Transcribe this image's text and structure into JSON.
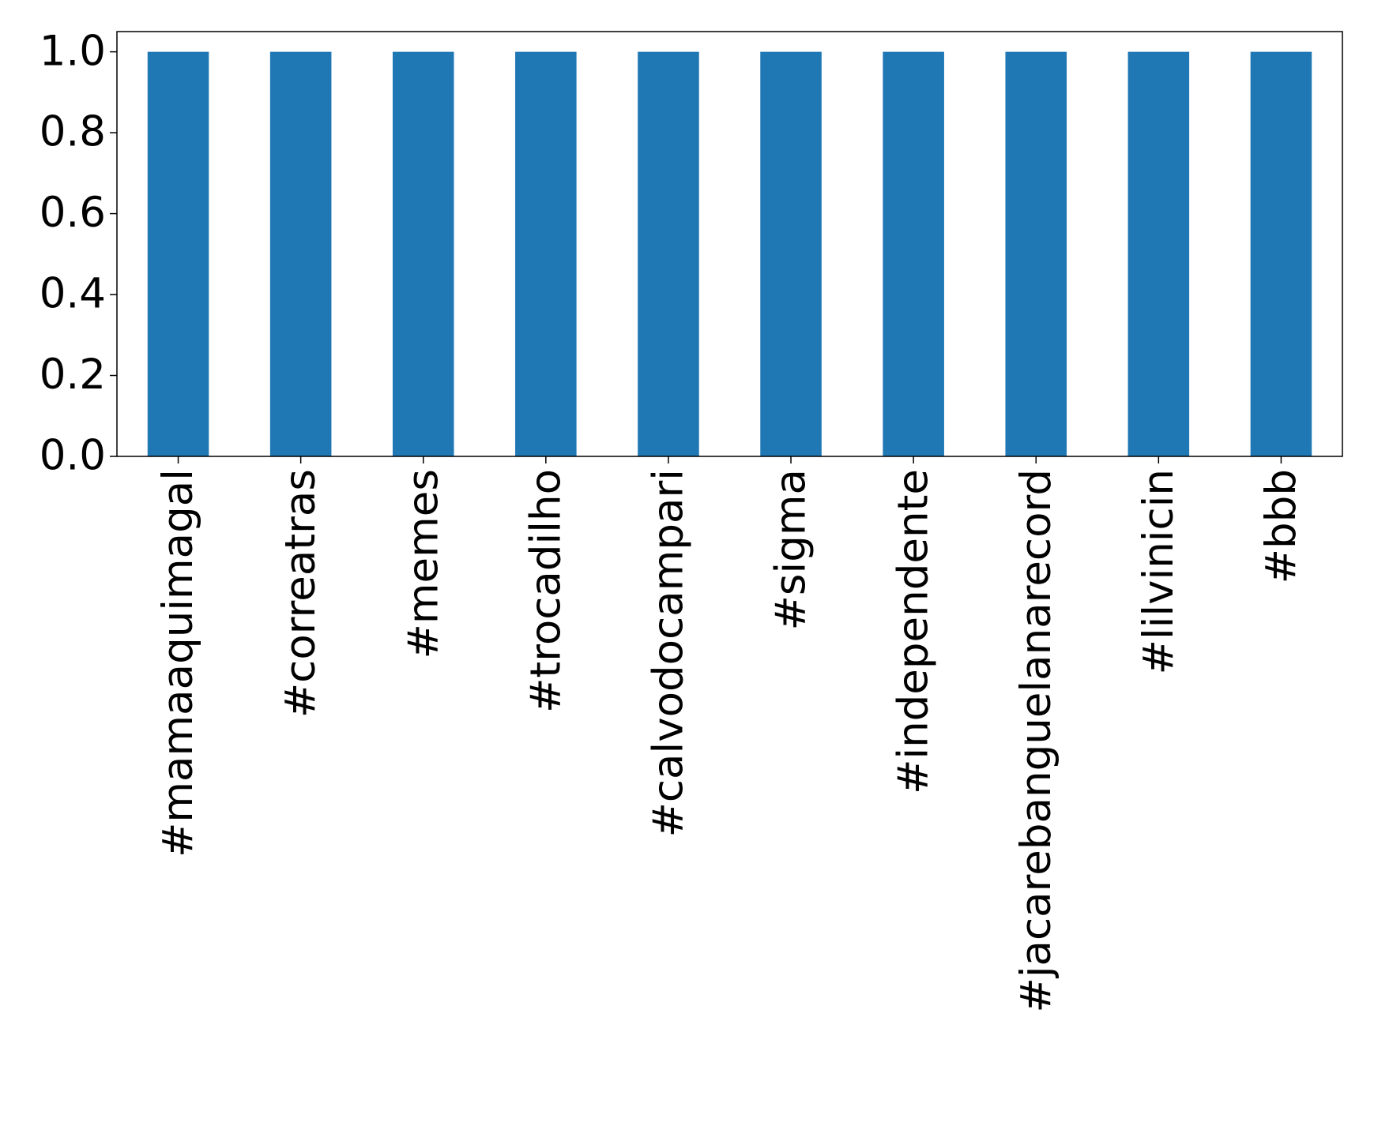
{
  "chart_data": {
    "type": "bar",
    "categories": [
      "#mamaaquimagal",
      "#correatras",
      "#memes",
      "#trocadilho",
      "#calvodocampari",
      "#sigma",
      "#independente",
      "#jacarebanguelanarecord",
      "#lilvinicin",
      "#bbb"
    ],
    "values": [
      1,
      1,
      1,
      1,
      1,
      1,
      1,
      1,
      1,
      1
    ],
    "color": "#1f77b4",
    "ylim": [
      0,
      1.05
    ],
    "yticks": [
      {
        "value": 0,
        "label": "0.0"
      },
      {
        "value": 0.2,
        "label": "0.2"
      },
      {
        "value": 0.4,
        "label": "0.4"
      },
      {
        "value": 0.6,
        "label": "0.6"
      },
      {
        "value": 0.8,
        "label": "0.8"
      },
      {
        "value": 1,
        "label": "1.0"
      }
    ],
    "grid": false
  }
}
